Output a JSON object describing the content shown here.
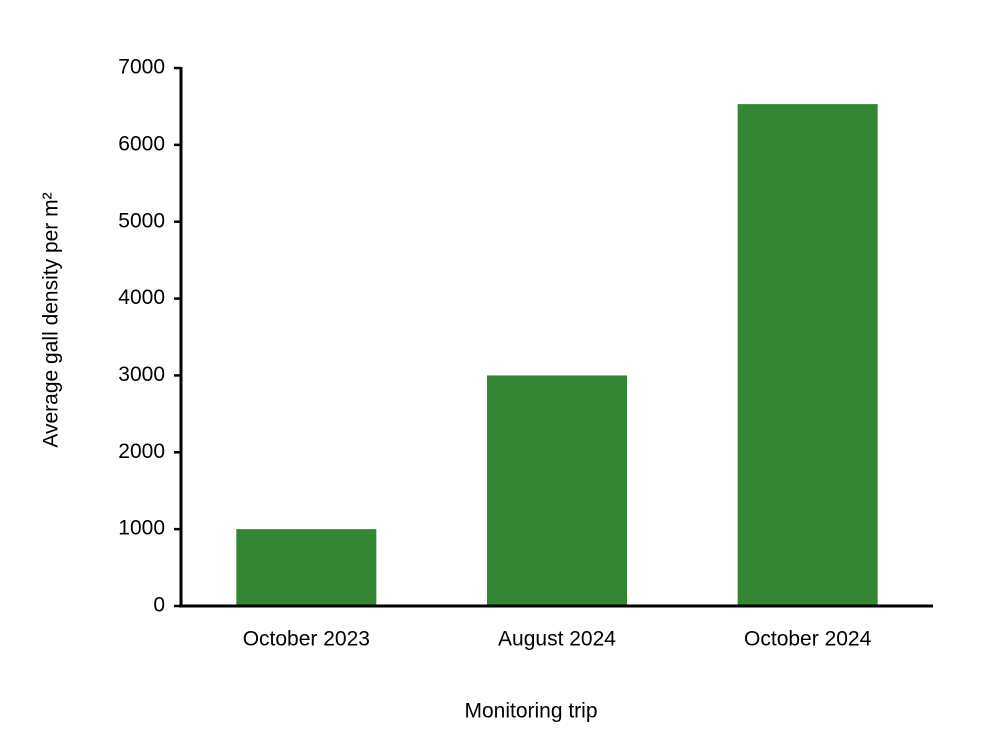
{
  "chart_data": {
    "type": "bar",
    "x_label": "Monitoring trip",
    "y_label": "Average gall density per m²",
    "categories": [
      "October 2023",
      "August 2024",
      "October 2024"
    ],
    "values": [
      1000,
      3000,
      6530
    ],
    "color": "#348534",
    "ylim": [
      0,
      7000
    ],
    "yticks": [
      0,
      1000,
      2000,
      3000,
      4000,
      5000,
      6000,
      7000
    ],
    "grid": false
  }
}
